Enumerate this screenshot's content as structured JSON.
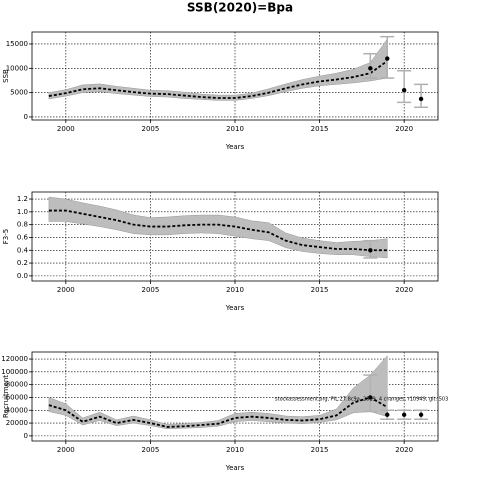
{
  "chart_data": [
    {
      "type": "line",
      "title": "SSB(2020)=Bpa",
      "xlabel": "Years",
      "ylabel": "SSB",
      "x": [
        1999,
        2000,
        2001,
        2002,
        2003,
        2004,
        2005,
        2006,
        2007,
        2008,
        2009,
        2010,
        2011,
        2012,
        2013,
        2014,
        2015,
        2016,
        2017,
        2018,
        2019
      ],
      "values": [
        4300,
        4900,
        5700,
        5900,
        5500,
        5100,
        4800,
        4700,
        4400,
        4100,
        3900,
        3900,
        4300,
        5000,
        5900,
        6700,
        7300,
        7700,
        8200,
        9000,
        11500
      ],
      "lower": [
        3700,
        4300,
        5000,
        5200,
        4800,
        4500,
        4200,
        4100,
        3800,
        3600,
        3400,
        3400,
        3800,
        4400,
        5200,
        5900,
        6400,
        6700,
        7000,
        7400,
        8000
      ],
      "upper": [
        5000,
        5600,
        6600,
        6800,
        6300,
        5900,
        5500,
        5400,
        5100,
        4700,
        4500,
        4500,
        4900,
        5800,
        6800,
        7700,
        8400,
        9000,
        9800,
        11200,
        16000
      ],
      "points": {
        "x": [
          2018,
          2019,
          2020,
          2021
        ],
        "values": [
          10000,
          12000,
          5500,
          3700
        ],
        "lower": [
          8000,
          8000,
          3000,
          2000
        ],
        "upper": [
          13000,
          16500,
          9500,
          6700
        ]
      },
      "color": "#000000",
      "band_color": "#bdbdbd",
      "error_color": "#b0b0b0",
      "xlim": [
        1998,
        2022
      ],
      "ylim": [
        -620,
        17460
      ],
      "xticks": [
        2000,
        2005,
        2010,
        2015,
        2020
      ],
      "yticks": [
        0,
        5000,
        10000,
        15000
      ],
      "grid": true
    },
    {
      "type": "line",
      "xlabel": "Years",
      "ylabel": "F3-5",
      "x": [
        1999,
        2000,
        2001,
        2002,
        2003,
        2004,
        2005,
        2006,
        2007,
        2008,
        2009,
        2010,
        2011,
        2012,
        2013,
        2014,
        2015,
        2016,
        2017,
        2018,
        2019
      ],
      "values": [
        1.02,
        1.02,
        0.97,
        0.92,
        0.87,
        0.8,
        0.77,
        0.77,
        0.79,
        0.8,
        0.8,
        0.77,
        0.72,
        0.68,
        0.55,
        0.48,
        0.45,
        0.42,
        0.42,
        0.4,
        0.4
      ],
      "lower": [
        0.85,
        0.85,
        0.81,
        0.77,
        0.72,
        0.66,
        0.64,
        0.64,
        0.66,
        0.67,
        0.66,
        0.62,
        0.58,
        0.55,
        0.44,
        0.38,
        0.35,
        0.33,
        0.33,
        0.3,
        0.28
      ],
      "upper": [
        1.23,
        1.2,
        1.14,
        1.09,
        1.03,
        0.95,
        0.91,
        0.92,
        0.94,
        0.95,
        0.95,
        0.92,
        0.86,
        0.83,
        0.67,
        0.59,
        0.55,
        0.52,
        0.54,
        0.55,
        0.58
      ],
      "points": {
        "x": [
          2018
        ],
        "values": [
          0.4
        ],
        "lower": [
          0.28
        ],
        "upper": [
          0.55
        ]
      },
      "color": "#000000",
      "band_color": "#bdbdbd",
      "error_color": "#b0b0b0",
      "xlim": [
        1998,
        2022
      ],
      "ylim": [
        -0.08,
        1.31
      ],
      "xticks": [
        2000,
        2005,
        2010,
        2015,
        2020
      ],
      "yticks": [
        {
          "value": 0,
          "label": "0.0"
        },
        0.2,
        0.4,
        0.6,
        0.8,
        {
          "value": 1,
          "label": "1.0"
        },
        1.2
      ],
      "grid": true
    },
    {
      "type": "line",
      "xlabel": "Years",
      "ylabel": "Recruitment",
      "annotation": "stockassessment.org, PIL.27.8c9a, 2019, 4 changes, r10949, git: 503",
      "x": [
        1999,
        2000,
        2001,
        2002,
        2003,
        2004,
        2005,
        2006,
        2007,
        2008,
        2009,
        2010,
        2011,
        2012,
        2013,
        2014,
        2015,
        2016,
        2017,
        2018,
        2019
      ],
      "values": [
        48000,
        40000,
        22000,
        30000,
        20000,
        25000,
        20000,
        14000,
        15000,
        17000,
        19000,
        28000,
        30000,
        28000,
        25000,
        24000,
        26000,
        32000,
        52000,
        60000,
        45000
      ],
      "lower": [
        38000,
        32000,
        17000,
        24000,
        16000,
        20000,
        16000,
        11000,
        12000,
        13000,
        15000,
        22000,
        24000,
        22000,
        20000,
        19000,
        21000,
        25000,
        36000,
        38000,
        30000
      ],
      "upper": [
        60000,
        50000,
        28000,
        37000,
        25000,
        31000,
        25000,
        18000,
        19000,
        21000,
        24000,
        35000,
        37000,
        35000,
        31000,
        30000,
        32000,
        42000,
        75000,
        95000,
        125000
      ],
      "points": {
        "x": [
          2018,
          2019,
          2020,
          2021
        ],
        "values": [
          60000,
          33000,
          33000,
          33000
        ],
        "lower": [
          38000,
          26000,
          26000,
          26000
        ],
        "upper": [
          95000,
          40000,
          40000,
          40000
        ]
      },
      "color": "#000000",
      "band_color": "#bdbdbd",
      "error_color": "#b0b0b0",
      "xlim": [
        1998,
        2022
      ],
      "ylim": [
        -8000,
        131000
      ],
      "xticks": [
        2000,
        2005,
        2010,
        2015,
        2020
      ],
      "yticks": [
        0,
        20000,
        40000,
        60000,
        80000,
        100000,
        120000
      ],
      "grid": true
    }
  ]
}
